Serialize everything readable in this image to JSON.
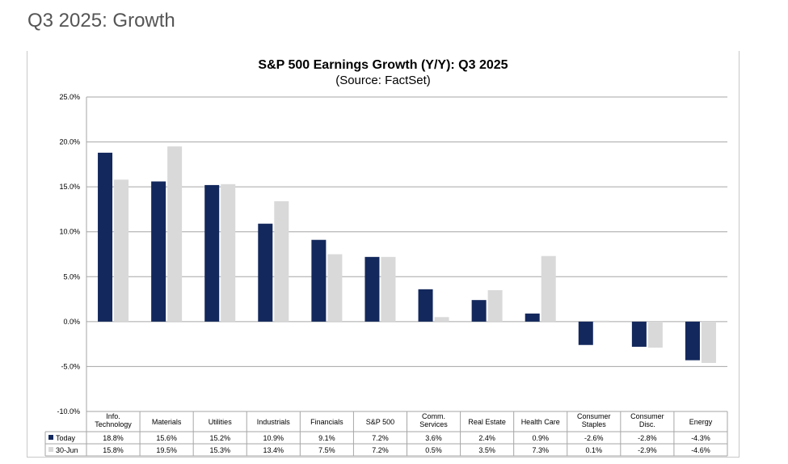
{
  "page": {
    "heading": "Q3 2025: Growth"
  },
  "chart_data": {
    "type": "bar",
    "title": "S&P 500 Earnings Growth (Y/Y): Q3 2025",
    "subtitle": "(Source: FactSet)",
    "categories": [
      [
        "Info.",
        "Technology"
      ],
      [
        "Materials"
      ],
      [
        "Utilities"
      ],
      [
        "Industrials"
      ],
      [
        "Financials"
      ],
      [
        "S&P 500"
      ],
      [
        "Comm.",
        "Services"
      ],
      [
        "Real Estate"
      ],
      [
        "Health Care"
      ],
      [
        "Consumer",
        "Staples"
      ],
      [
        "Consumer",
        "Disc."
      ],
      [
        "Energy"
      ]
    ],
    "series": [
      {
        "name": "Today",
        "color": "#13285c",
        "values": [
          18.8,
          15.6,
          15.2,
          10.9,
          9.1,
          7.2,
          3.6,
          2.4,
          0.9,
          -2.6,
          -2.8,
          -4.3
        ],
        "labels": [
          "18.8%",
          "15.6%",
          "15.2%",
          "10.9%",
          "9.1%",
          "7.2%",
          "3.6%",
          "2.4%",
          "0.9%",
          "-2.6%",
          "-2.8%",
          "-4.3%"
        ]
      },
      {
        "name": "30-Jun",
        "color": "#d9d9d9",
        "values": [
          15.8,
          19.5,
          15.3,
          13.4,
          7.5,
          7.2,
          0.5,
          3.5,
          7.3,
          0.1,
          -2.9,
          -4.6
        ],
        "labels": [
          "15.8%",
          "19.5%",
          "15.3%",
          "13.4%",
          "7.5%",
          "7.2%",
          "0.5%",
          "3.5%",
          "7.3%",
          "0.1%",
          "-2.9%",
          "-4.6%"
        ]
      }
    ],
    "ylim": [
      -10,
      25
    ],
    "yticks": [
      25,
      20,
      15,
      10,
      5,
      0,
      -5,
      -10
    ],
    "ytick_labels": [
      "25.0%",
      "20.0%",
      "15.0%",
      "10.0%",
      "5.0%",
      "0.0%",
      "-5.0%",
      "-10.0%"
    ],
    "grid": true,
    "legend": "data-table-left"
  }
}
